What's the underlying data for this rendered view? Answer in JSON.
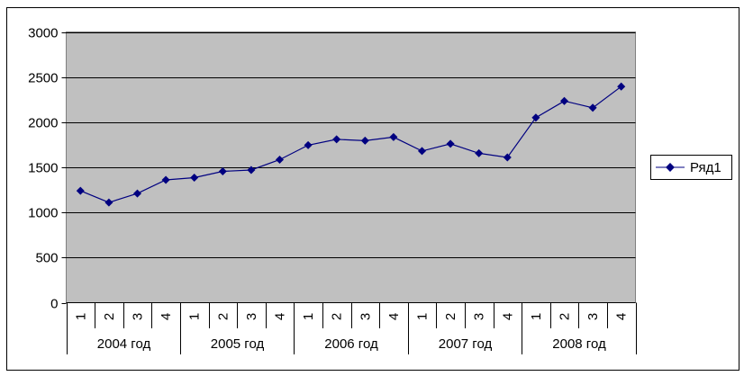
{
  "chart_data": {
    "type": "line",
    "categories": [
      "1",
      "2",
      "3",
      "4",
      "1",
      "2",
      "3",
      "4",
      "1",
      "2",
      "3",
      "4",
      "1",
      "2",
      "3",
      "4",
      "1",
      "2",
      "3",
      "4"
    ],
    "groups": [
      {
        "label": "2004 год",
        "count": 4
      },
      {
        "label": "2005 год",
        "count": 4
      },
      {
        "label": "2006 год",
        "count": 4
      },
      {
        "label": "2007 год",
        "count": 4
      },
      {
        "label": "2008 год",
        "count": 4
      }
    ],
    "series": [
      {
        "name": "Ряд1",
        "color": "#000080",
        "values": [
          1240,
          1110,
          1210,
          1360,
          1385,
          1455,
          1470,
          1585,
          1745,
          1810,
          1795,
          1835,
          1680,
          1760,
          1655,
          1610,
          2050,
          2235,
          2160,
          2395
        ]
      }
    ],
    "yticks": [
      "0",
      "500",
      "1000",
      "1500",
      "2000",
      "2500",
      "3000"
    ],
    "ylim": [
      0,
      3000
    ],
    "grid": true,
    "plot_background": "#c0c0c0",
    "legend_position": "right"
  }
}
